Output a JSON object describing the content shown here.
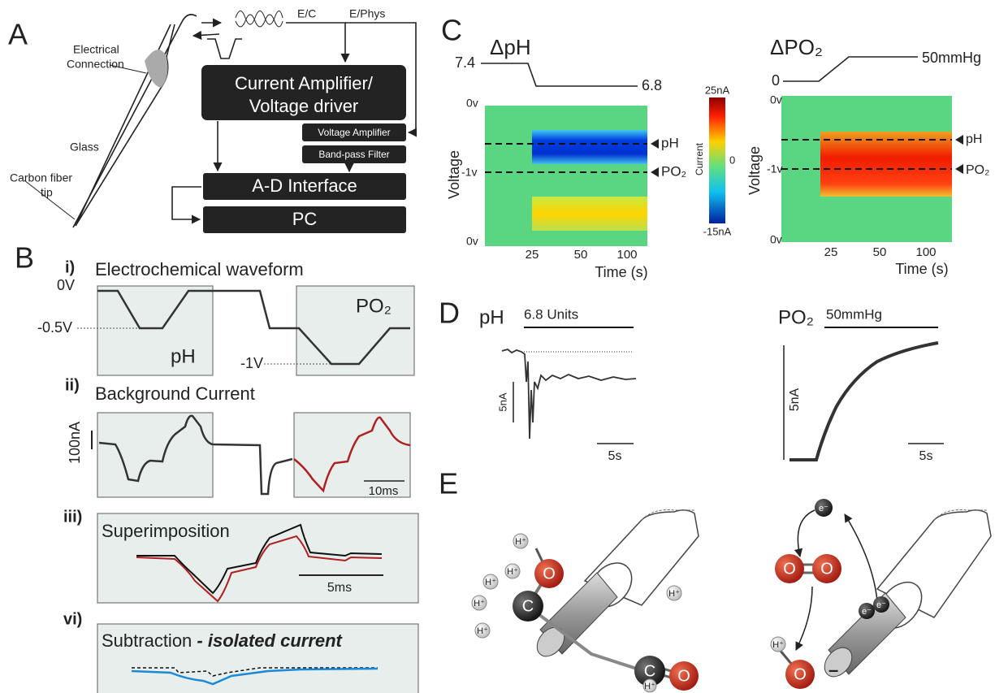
{
  "panel_a": {
    "label": "A",
    "electrical": "Electrical",
    "connection": "Connection",
    "glass": "Glass",
    "carbon_fiber": "Carbon fiber",
    "tip": "tip",
    "ec": "E/C",
    "ephys": "E/Phys",
    "current_amplifier": "Current Amplifier/",
    "voltage_driver": "Voltage driver",
    "voltage_amplifier": "Voltage Amplifier",
    "band_pass_filter": "Band-pass Filter",
    "ad_interface": "A-D Interface",
    "pc": "PC"
  },
  "panel_b": {
    "label": "B",
    "i": {
      "numeral": "i)",
      "title": "Electrochemical waveform",
      "v0": "0V",
      "v05": "-0.5V",
      "v1": "-1V",
      "ph": "pH",
      "po2": "PO₂"
    },
    "ii": {
      "numeral": "ii)",
      "title": "Background Current",
      "scale": "100nA",
      "time": "10ms"
    },
    "iii": {
      "numeral": "iii)",
      "title": "Superimposition",
      "time": "5ms"
    },
    "vi": {
      "numeral": "vi)",
      "title": "Subtraction ",
      "emphasis": "- isolated current"
    }
  },
  "panel_c": {
    "label": "C",
    "ph": {
      "title": "ΔpH",
      "start": "7.4",
      "end": "6.8",
      "y_label": "Voltage",
      "yticks": [
        "0v",
        "-1v",
        "0v"
      ],
      "xticks": [
        "25",
        "50",
        "100"
      ],
      "x_label": "Time (s)",
      "markers": [
        "pH",
        "PO₂"
      ]
    },
    "colorbar": {
      "label": "Current",
      "ticks": [
        "25nA",
        "0",
        "-15nA"
      ]
    },
    "po2": {
      "title": "ΔPO₂",
      "start": "0",
      "end": "50mmHg",
      "y_label": "Voltage",
      "yticks": [
        "0v",
        "-1v",
        "0v"
      ],
      "xticks": [
        "25",
        "50",
        "100"
      ],
      "x_label": "Time (s)",
      "markers": [
        "pH",
        "PO₂"
      ]
    }
  },
  "panel_d": {
    "label": "D",
    "ph": {
      "title": "pH",
      "stimulus": "6.8 Units",
      "scale_y": "5nA",
      "scale_x": "5s"
    },
    "po2": {
      "title": "PO₂",
      "stimulus": "50mmHg",
      "scale_y": "5nA",
      "scale_x": "5s"
    }
  },
  "panel_e": {
    "label": "E",
    "left": {
      "atoms": [
        "O",
        "C",
        "C",
        "O"
      ],
      "ions": [
        "H⁺",
        "H⁺",
        "H⁺",
        "H⁺",
        "H⁺",
        "H⁺",
        "H⁺"
      ]
    },
    "right": {
      "atoms": [
        "O",
        "O",
        "O"
      ],
      "electrons": [
        "e⁻",
        "e⁻",
        "e⁻"
      ],
      "ions": [
        "H⁺"
      ],
      "charge": "–"
    }
  }
}
